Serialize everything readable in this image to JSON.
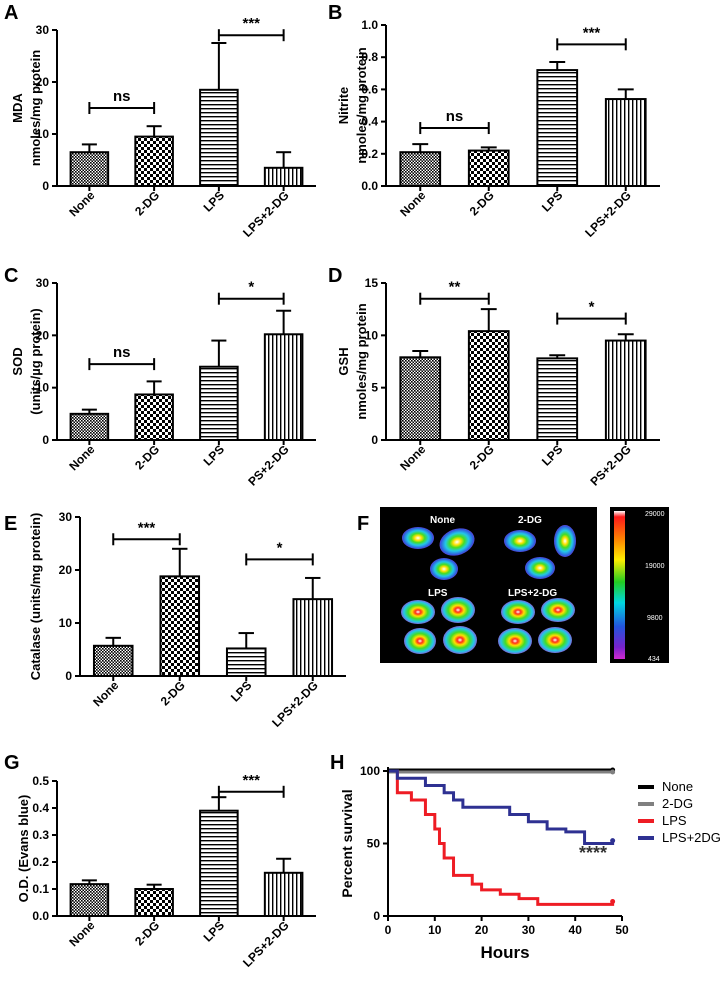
{
  "colors": {
    "none": "#000000",
    "dg": "#808080",
    "lps": "#ee1c24",
    "lpsdg": "#2e3192"
  },
  "chart_data": [
    {
      "panel": "A",
      "type": "bar",
      "ylabel": [
        "MDA",
        "nmoles/mg protein"
      ],
      "ylim": [
        0,
        30
      ],
      "yticks": [
        0,
        10,
        20,
        30
      ],
      "categories": [
        "None",
        "2-DG",
        "LPS",
        "LPS+2-DG"
      ],
      "patterns": [
        "dense",
        "checker",
        "hstripe",
        "vstripe"
      ],
      "values": [
        6.5,
        9.5,
        18.5,
        3.5
      ],
      "errors": [
        1.5,
        2.0,
        9.0,
        3.0
      ],
      "significance": [
        {
          "from": 0,
          "to": 1,
          "label": "ns",
          "y": 15
        },
        {
          "from": 2,
          "to": 3,
          "label": "***",
          "y": 29
        }
      ]
    },
    {
      "panel": "B",
      "type": "bar",
      "ylabel": [
        "Nitrite",
        "nmoles/mg protein"
      ],
      "ylim": [
        0,
        1.0
      ],
      "yticks": [
        "0.0",
        "0.2",
        "0.4",
        "0.6",
        "0.8",
        "1.0"
      ],
      "categories": [
        "None",
        "2-DG",
        "LPS",
        "LPS+2-DG"
      ],
      "patterns": [
        "dense",
        "checker",
        "hstripe",
        "vstripe"
      ],
      "values": [
        0.21,
        0.22,
        0.72,
        0.54
      ],
      "errors": [
        0.05,
        0.02,
        0.05,
        0.06
      ],
      "significance": [
        {
          "from": 0,
          "to": 1,
          "label": "ns",
          "y": 0.36
        },
        {
          "from": 2,
          "to": 3,
          "label": "***",
          "y": 0.88
        }
      ]
    },
    {
      "panel": "C",
      "type": "bar",
      "ylabel": [
        "SOD",
        "(units/µg protein)"
      ],
      "ylim": [
        0,
        30
      ],
      "yticks": [
        0,
        10,
        20,
        30
      ],
      "categories": [
        "None",
        "2-DG",
        "LPS",
        "LPS+2-DG"
      ],
      "category_labels_shown": [
        "None",
        "2-DG",
        "LPS",
        "PS+2-DG"
      ],
      "patterns": [
        "dense",
        "checker",
        "hstripe",
        "vstripe"
      ],
      "values": [
        5.0,
        8.7,
        14.0,
        20.2
      ],
      "errors": [
        0.8,
        2.5,
        5.0,
        4.5
      ],
      "significance": [
        {
          "from": 0,
          "to": 1,
          "label": "ns",
          "y": 14.5
        },
        {
          "from": 2,
          "to": 3,
          "label": "*",
          "y": 27
        }
      ]
    },
    {
      "panel": "D",
      "type": "bar",
      "ylabel": [
        "GSH",
        "nmoles/mg protein"
      ],
      "ylim": [
        0,
        15
      ],
      "yticks": [
        0,
        5,
        10,
        15
      ],
      "categories": [
        "None",
        "2-DG",
        "LPS",
        "LPS+2-DG"
      ],
      "category_labels_shown": [
        "None",
        "2-DG",
        "LPS",
        "PS+2-DG"
      ],
      "patterns": [
        "dense",
        "checker",
        "hstripe",
        "vstripe"
      ],
      "values": [
        7.9,
        10.4,
        7.8,
        9.5
      ],
      "errors": [
        0.6,
        2.1,
        0.3,
        0.6
      ],
      "significance": [
        {
          "from": 0,
          "to": 1,
          "label": "**",
          "y": 13.5
        },
        {
          "from": 2,
          "to": 3,
          "label": "*",
          "y": 11.6
        }
      ]
    },
    {
      "panel": "E",
      "type": "bar",
      "ylabel": [
        "Catalase  (units/mg protein)"
      ],
      "ylim": [
        0,
        30
      ],
      "yticks": [
        0,
        10,
        20,
        30
      ],
      "categories": [
        "None",
        "2-DG",
        "LPS",
        "LPS+2-DG"
      ],
      "patterns": [
        "dense",
        "checker",
        "hstripe",
        "vstripe"
      ],
      "values": [
        5.7,
        18.8,
        5.2,
        14.5
      ],
      "errors": [
        1.5,
        5.2,
        2.9,
        4.0
      ],
      "significance": [
        {
          "from": 0,
          "to": 1,
          "label": "***",
          "y": 25.8
        },
        {
          "from": 2,
          "to": 3,
          "label": "*",
          "y": 22
        }
      ]
    },
    {
      "panel": "G",
      "type": "bar",
      "ylabel": [
        "O.D. (Evans blue)"
      ],
      "ylim": [
        0,
        0.5
      ],
      "yticks": [
        "0.0",
        "0.1",
        "0.2",
        "0.3",
        "0.4",
        "0.5"
      ],
      "categories": [
        "None",
        "2-DG",
        "LPS",
        "LPS+2-DG"
      ],
      "patterns": [
        "dense",
        "checker",
        "hstripe",
        "vstripe"
      ],
      "values": [
        0.118,
        0.1,
        0.39,
        0.16
      ],
      "errors": [
        0.014,
        0.016,
        0.05,
        0.052
      ],
      "significance": [
        {
          "from": 2,
          "to": 3,
          "label": "***",
          "y": 0.46
        }
      ]
    },
    {
      "panel": "H",
      "type": "line",
      "xlabel": "Hours",
      "ylabel": "Percent survival",
      "xlim": [
        0,
        50
      ],
      "ylim": [
        0,
        100
      ],
      "xticks": [
        0,
        10,
        20,
        30,
        40,
        50
      ],
      "yticks": [
        0,
        50,
        100
      ],
      "annotation": "****",
      "series": [
        {
          "name": "None",
          "color_key": "none",
          "x": [
            0,
            48
          ],
          "y": [
            100,
            100
          ]
        },
        {
          "name": "2-DG",
          "color_key": "dg",
          "x": [
            0,
            48
          ],
          "y": [
            100,
            100
          ]
        },
        {
          "name": "LPS",
          "color_key": "lps",
          "x": [
            0,
            2,
            5,
            8,
            10,
            11,
            12,
            14,
            18,
            20,
            24,
            28,
            32,
            48
          ],
          "y": [
            100,
            85,
            80,
            70,
            60,
            50,
            40,
            28,
            22,
            18,
            15,
            12,
            8,
            10
          ]
        },
        {
          "name": "LPS+2DG",
          "color_key": "lpsdg",
          "x": [
            0,
            2,
            8,
            12,
            14,
            16,
            20,
            26,
            30,
            34,
            38,
            42,
            48
          ],
          "y": [
            100,
            95,
            90,
            85,
            80,
            75,
            75,
            70,
            65,
            60,
            58,
            50,
            52
          ]
        }
      ]
    },
    {
      "panel": "F",
      "type": "image",
      "group_labels": [
        "None",
        "2-DG",
        "LPS",
        "LPS+2-DG"
      ],
      "colorbar_ticks": [
        "29000",
        "19000",
        "9800",
        "434"
      ]
    }
  ]
}
